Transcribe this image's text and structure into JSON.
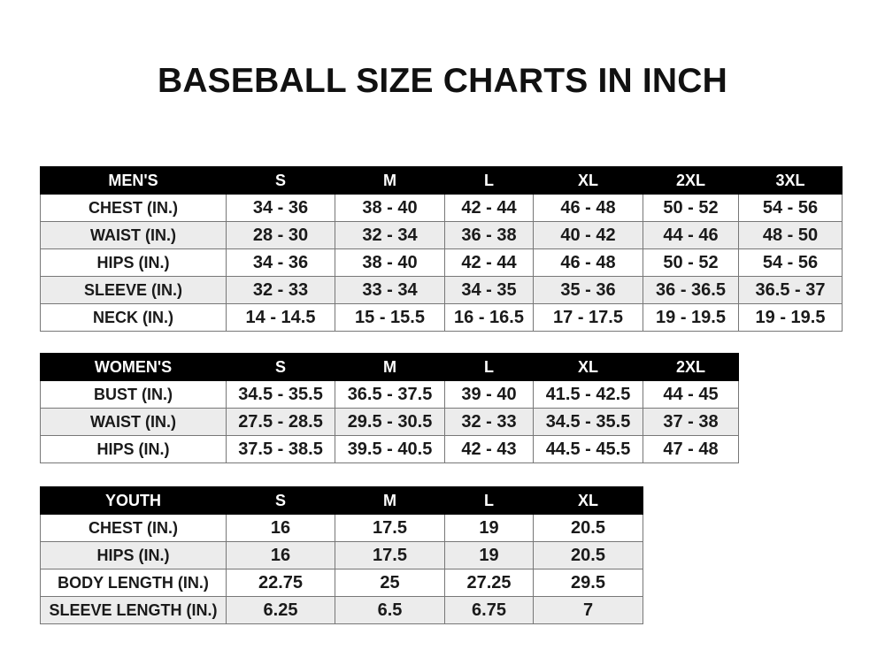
{
  "title": "BASEBALL SIZE CHARTS IN INCH",
  "tables": [
    {
      "headers": [
        "MEN'S",
        "S",
        "M",
        "L",
        "XL",
        "2XL",
        "3XL"
      ],
      "rows": [
        [
          "CHEST (IN.)",
          "34 - 36",
          "38 - 40",
          "42 - 44",
          "46 - 48",
          "50 - 52",
          "54 - 56"
        ],
        [
          "WAIST (IN.)",
          "28 - 30",
          "32 - 34",
          "36 - 38",
          "40 - 42",
          "44 - 46",
          "48 - 50"
        ],
        [
          "HIPS (IN.)",
          "34 - 36",
          "38 - 40",
          "42 - 44",
          "46 - 48",
          "50 - 52",
          "54 - 56"
        ],
        [
          "SLEEVE (IN.)",
          "32 - 33",
          "33 - 34",
          "34 - 35",
          "35 - 36",
          "36 - 36.5",
          "36.5 - 37"
        ],
        [
          "NECK (IN.)",
          "14 - 14.5",
          "15 - 15.5",
          "16 - 16.5",
          "17 - 17.5",
          "19 - 19.5",
          "19 - 19.5"
        ]
      ]
    },
    {
      "headers": [
        "WOMEN'S",
        "S",
        "M",
        "L",
        "XL",
        "2XL"
      ],
      "rows": [
        [
          "BUST (IN.)",
          "34.5 - 35.5",
          "36.5 - 37.5",
          "39 - 40",
          "41.5 - 42.5",
          "44 - 45"
        ],
        [
          "WAIST (IN.)",
          "27.5 - 28.5",
          "29.5 - 30.5",
          "32 - 33",
          "34.5 - 35.5",
          "37 - 38"
        ],
        [
          "HIPS (IN.)",
          "37.5 - 38.5",
          "39.5 - 40.5",
          "42 - 43",
          "44.5 - 45.5",
          "47 - 48"
        ]
      ]
    },
    {
      "headers": [
        "YOUTH",
        "S",
        "M",
        "L",
        "XL"
      ],
      "rows": [
        [
          "CHEST (IN.)",
          "16",
          "17.5",
          "19",
          "20.5"
        ],
        [
          "HIPS (IN.)",
          "16",
          "17.5",
          "19",
          "20.5"
        ],
        [
          "BODY LENGTH (IN.)",
          "22.75",
          "25",
          "27.25",
          "29.5"
        ],
        [
          "SLEEVE LENGTH (IN.)",
          "6.25",
          "6.5",
          "6.75",
          "7"
        ]
      ]
    }
  ]
}
